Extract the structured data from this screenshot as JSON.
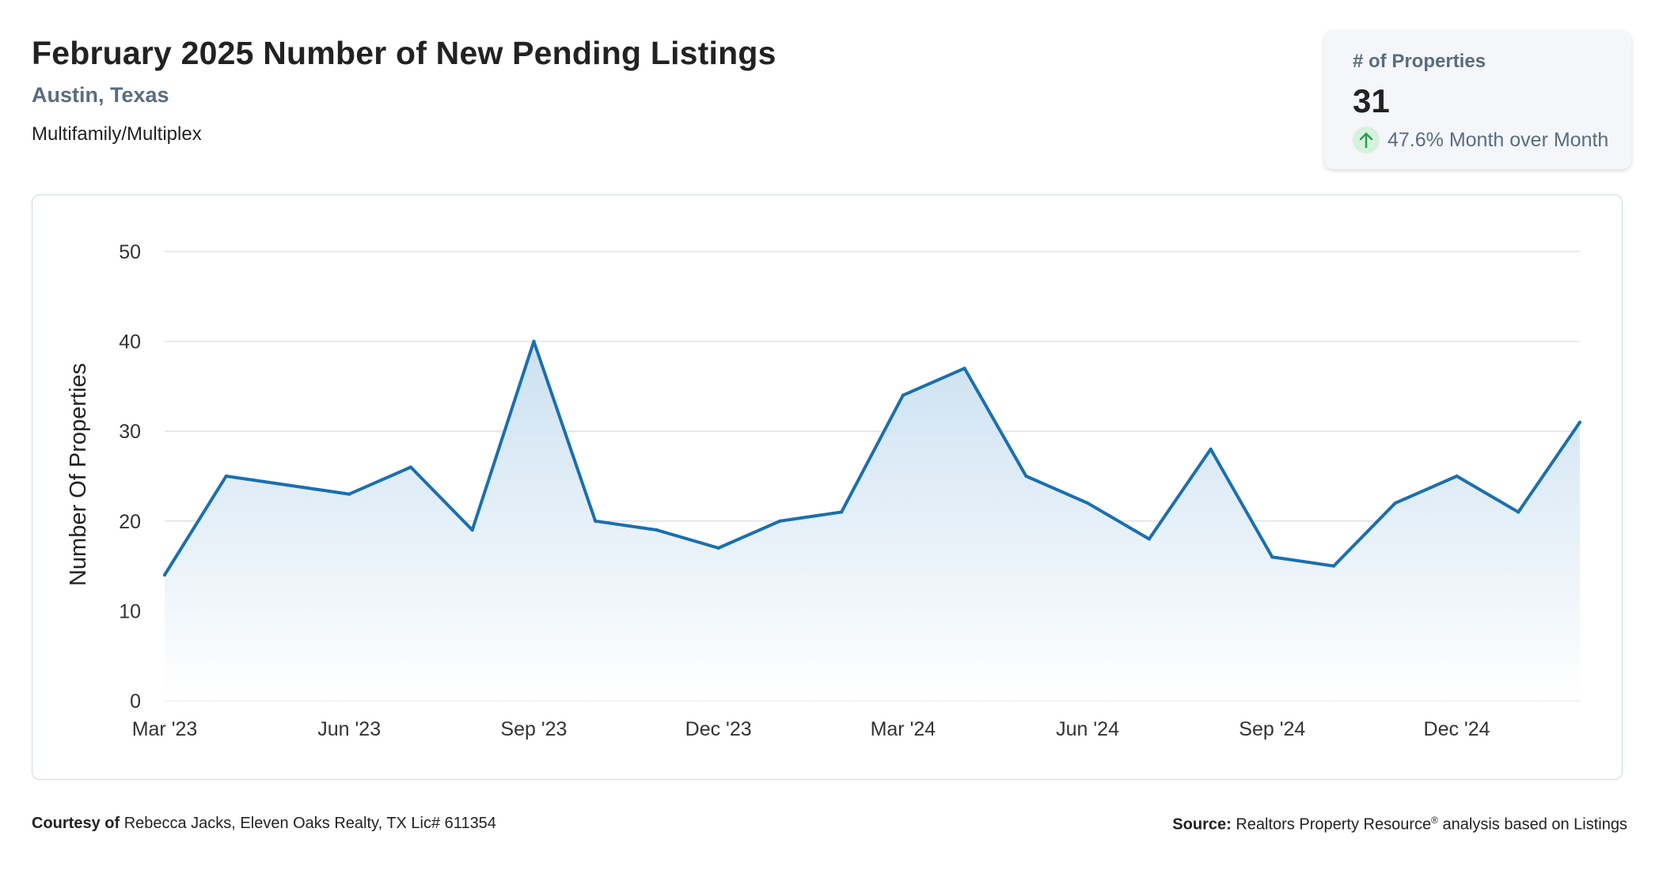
{
  "header": {
    "title": "February 2025 Number of New Pending Listings",
    "location": "Austin, Texas",
    "category": "Multifamily/Multiplex"
  },
  "stat_card": {
    "label": "# of Properties",
    "value": "31",
    "change": "47.6% Month over Month",
    "change_icon": "arrow-up-icon",
    "change_color": "#2e9e4f"
  },
  "footer": {
    "courtesy_label": "Courtesy of",
    "courtesy_text": "Rebecca Jacks, Eleven Oaks Realty, TX Lic# 611354",
    "source_label": "Source:",
    "source_text_1": "Realtors Property Resource",
    "source_mark": "®",
    "source_text_2": " analysis based on Listings"
  },
  "colors": {
    "line": "#1a6fb0",
    "area_top": "#c9dff0",
    "area_bottom": "#ffffff",
    "grid": "#dde3e8"
  },
  "chart_data": {
    "type": "area",
    "x": [
      "Mar '23",
      "Apr '23",
      "May '23",
      "Jun '23",
      "Jul '23",
      "Aug '23",
      "Sep '23",
      "Oct '23",
      "Nov '23",
      "Dec '23",
      "Jan '24",
      "Feb '24",
      "Mar '24",
      "Apr '24",
      "May '24",
      "Jun '24",
      "Jul '24",
      "Aug '24",
      "Sep '24",
      "Oct '24",
      "Nov '24",
      "Dec '24",
      "Jan '25",
      "Feb '25"
    ],
    "series": [
      {
        "values": [
          14,
          25,
          24,
          23,
          26,
          19,
          40,
          20,
          19,
          17,
          20,
          21,
          34,
          37,
          25,
          22,
          18,
          28,
          16,
          15,
          22,
          25,
          21,
          31
        ]
      }
    ],
    "x_tick_labels": [
      "Mar '23",
      "Jun '23",
      "Sep '23",
      "Dec '23",
      "Mar '24",
      "Jun '24",
      "Sep '24",
      "Dec '24"
    ],
    "x_tick_indices": [
      0,
      3,
      6,
      9,
      12,
      15,
      18,
      21
    ],
    "ylabel": "Number Of Properties",
    "ylim": [
      0,
      50
    ],
    "yticks": [
      0,
      10,
      20,
      30,
      40,
      50
    ],
    "grid": true
  }
}
